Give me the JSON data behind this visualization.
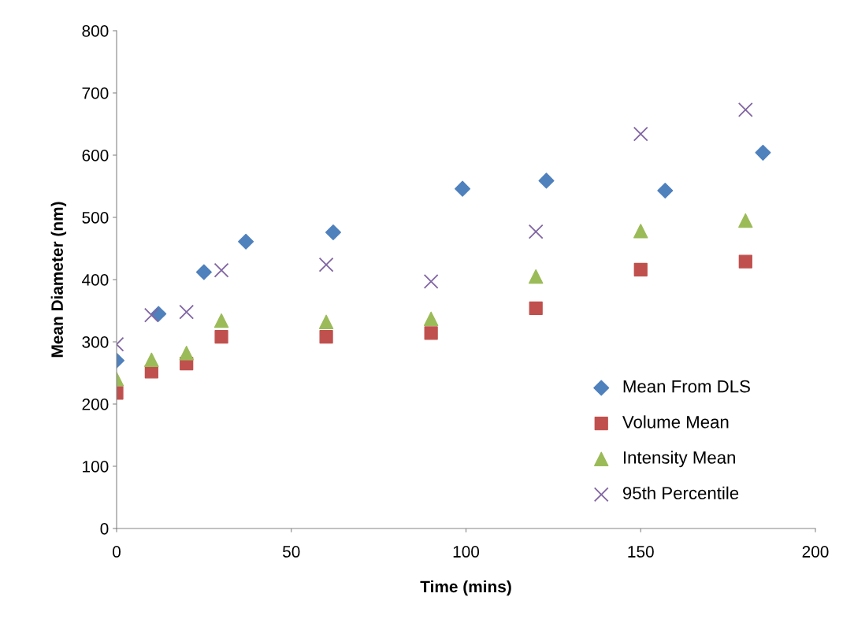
{
  "chart_data": {
    "type": "scatter",
    "xlabel": "Time (mins)",
    "ylabel": "Mean Diameter (nm)",
    "xlim": [
      0,
      200
    ],
    "xticks": [
      0,
      50,
      100,
      150,
      200
    ],
    "ylim": [
      0,
      800
    ],
    "yticks": [
      0,
      100,
      200,
      300,
      400,
      500,
      600,
      700,
      800
    ],
    "grid": false,
    "legend": "bottom right",
    "series": [
      {
        "name": "Mean From DLS",
        "color": "#4f81bd",
        "marker": "diamond",
        "x": [
          0,
          12,
          25,
          37,
          62,
          99,
          123,
          157,
          185
        ],
        "values": [
          270,
          345,
          412,
          461,
          476,
          546,
          559,
          543,
          604
        ]
      },
      {
        "name": "Volume Mean",
        "color": "#c0504d",
        "marker": "square",
        "x": [
          0,
          10,
          20,
          30,
          60,
          90,
          120,
          150,
          180
        ],
        "values": [
          218,
          252,
          265,
          308,
          308,
          314,
          354,
          416,
          429
        ]
      },
      {
        "name": "Intensity Mean",
        "color": "#9bbb59",
        "marker": "triangle",
        "x": [
          0,
          10,
          20,
          30,
          60,
          90,
          120,
          150,
          180
        ],
        "values": [
          240,
          271,
          282,
          334,
          332,
          337,
          405,
          478,
          495
        ]
      },
      {
        "name": "95th Percentile",
        "color": "#8064a2",
        "marker": "cross",
        "x": [
          0,
          10,
          20,
          30,
          60,
          90,
          120,
          150,
          180
        ],
        "values": [
          296,
          343,
          348,
          415,
          424,
          397,
          477,
          634,
          673
        ]
      }
    ]
  }
}
